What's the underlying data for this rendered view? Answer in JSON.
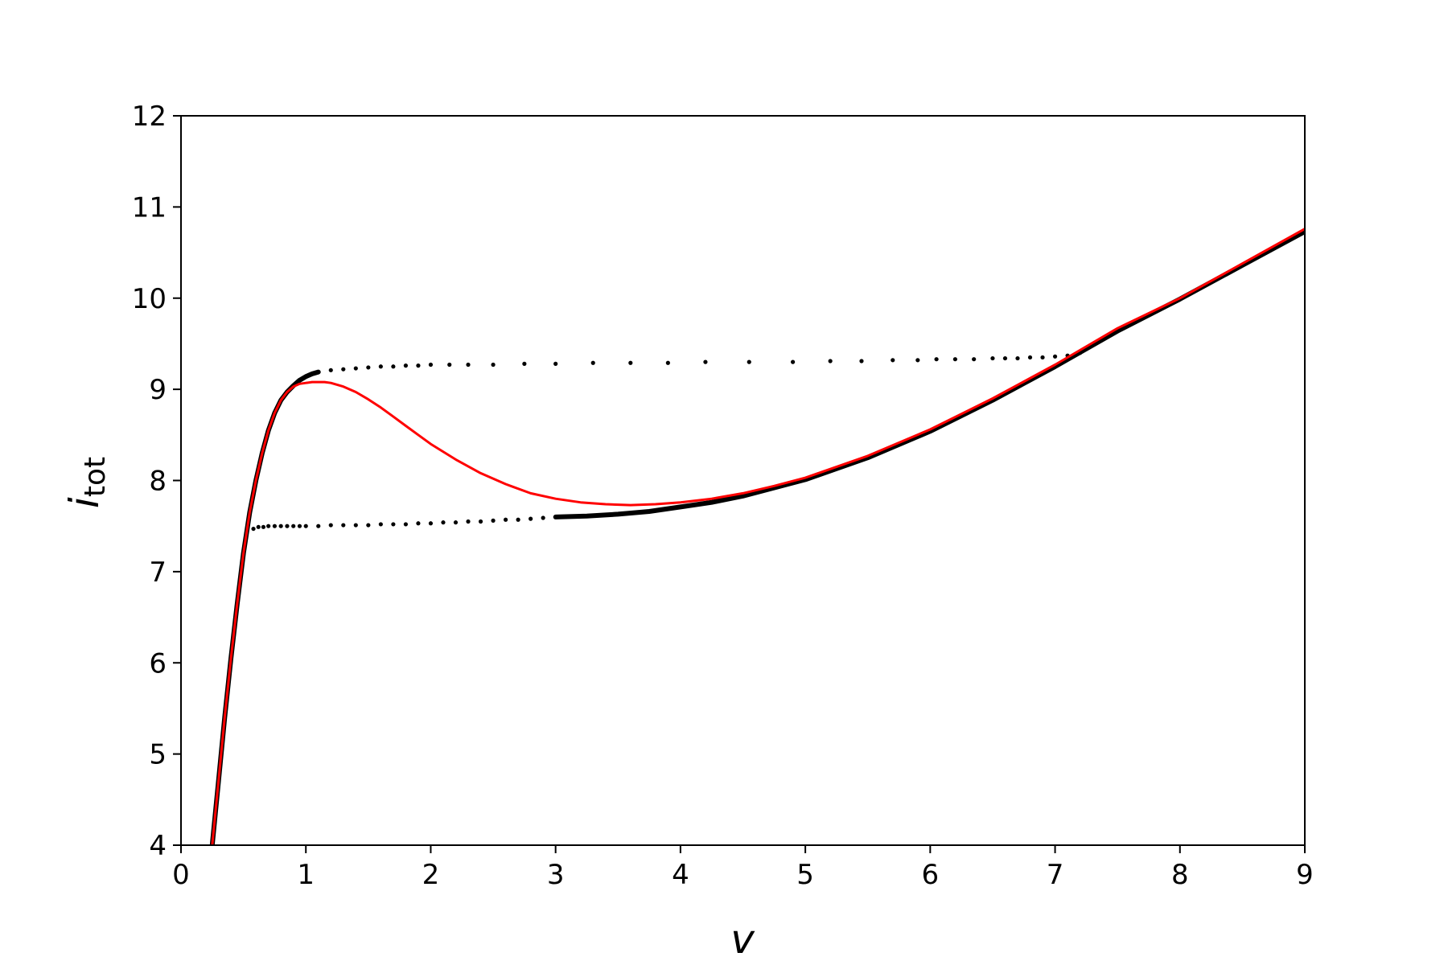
{
  "chart_data": {
    "type": "line",
    "xlabel": "v",
    "ylabel": {
      "main": "i",
      "subscript": "tot"
    },
    "xlim": [
      0,
      9
    ],
    "ylim": [
      4,
      12
    ],
    "xticks": [
      "0",
      "1",
      "2",
      "3",
      "4",
      "5",
      "6",
      "7",
      "8",
      "9"
    ],
    "yticks": [
      "4",
      "5",
      "6",
      "7",
      "8",
      "9",
      "10",
      "11",
      "12"
    ],
    "grid": false,
    "legend": "none",
    "colors": {
      "simulated": "#000000",
      "model": "#ff0000"
    },
    "series": [
      {
        "style": "solid-line",
        "color": "#ff0000",
        "x": [
          0.25,
          0.3,
          0.35,
          0.4,
          0.45,
          0.5,
          0.55,
          0.6,
          0.65,
          0.7,
          0.75,
          0.8,
          0.85,
          0.9,
          0.95,
          1.0,
          1.05,
          1.1,
          1.15,
          1.2,
          1.3,
          1.4,
          1.5,
          1.6,
          1.7,
          1.8,
          1.9,
          2.0,
          2.2,
          2.4,
          2.6,
          2.8,
          3.0,
          3.2,
          3.4,
          3.6,
          3.8,
          4.0,
          4.25,
          4.5,
          4.75,
          5.0,
          5.5,
          6.0,
          6.5,
          7.0,
          7.5,
          8.0,
          8.5,
          9.0
        ],
        "y": [
          4.0,
          4.7,
          5.4,
          6.05,
          6.65,
          7.2,
          7.65,
          8.0,
          8.3,
          8.55,
          8.74,
          8.88,
          8.97,
          9.03,
          9.06,
          9.07,
          9.08,
          9.08,
          9.08,
          9.07,
          9.03,
          8.97,
          8.89,
          8.8,
          8.7,
          8.6,
          8.5,
          8.4,
          8.23,
          8.08,
          7.96,
          7.86,
          7.8,
          7.76,
          7.74,
          7.73,
          7.74,
          7.76,
          7.8,
          7.86,
          7.94,
          8.03,
          8.27,
          8.56,
          8.9,
          9.27,
          9.67,
          10.0,
          10.38,
          10.76
        ]
      },
      {
        "style": "solid-line",
        "color": "#000000",
        "x": [
          0.25,
          0.3,
          0.35,
          0.4,
          0.45,
          0.5,
          0.55,
          0.6,
          0.65,
          0.7,
          0.75,
          0.8,
          0.85,
          0.9,
          0.95,
          1.0,
          1.05,
          1.1
        ],
        "y": [
          4.0,
          4.7,
          5.4,
          6.05,
          6.65,
          7.2,
          7.65,
          8.0,
          8.3,
          8.55,
          8.74,
          8.88,
          8.97,
          9.04,
          9.1,
          9.14,
          9.17,
          9.19
        ]
      },
      {
        "style": "solid-line",
        "color": "#000000",
        "x": [
          3.0,
          3.25,
          3.5,
          3.75,
          4.0,
          4.25,
          4.5,
          4.75,
          5.0,
          5.5,
          6.0,
          6.5,
          7.0,
          7.5,
          8.0,
          8.5,
          9.0
        ],
        "y": [
          7.6,
          7.61,
          7.63,
          7.66,
          7.71,
          7.76,
          7.83,
          7.92,
          8.01,
          8.25,
          8.54,
          8.88,
          9.25,
          9.64,
          9.99,
          10.36,
          10.73
        ]
      },
      {
        "style": "dotted",
        "color": "#000000",
        "x": [
          1.1,
          1.2,
          1.3,
          1.4,
          1.5,
          1.6,
          1.7,
          1.8,
          1.9,
          2.0,
          2.15,
          2.3,
          2.5,
          2.75,
          3.0,
          3.3,
          3.6,
          3.9,
          4.2,
          4.55,
          4.9,
          5.2,
          5.45,
          5.7,
          5.9,
          6.05,
          6.2,
          6.35,
          6.5,
          6.6,
          6.7,
          6.8,
          6.9,
          7.0,
          7.1,
          7.2
        ],
        "y": [
          9.19,
          9.21,
          9.22,
          9.23,
          9.24,
          9.25,
          9.25,
          9.26,
          9.26,
          9.27,
          9.27,
          9.27,
          9.27,
          9.28,
          9.28,
          9.29,
          9.29,
          9.29,
          9.3,
          9.3,
          9.3,
          9.31,
          9.31,
          9.32,
          9.32,
          9.33,
          9.33,
          9.33,
          9.34,
          9.34,
          9.34,
          9.35,
          9.35,
          9.36,
          9.37,
          9.4
        ]
      },
      {
        "style": "dotted",
        "color": "#000000",
        "x": [
          0.58,
          0.62,
          0.66,
          0.7,
          0.75,
          0.8,
          0.85,
          0.9,
          0.95,
          1.0,
          1.1,
          1.2,
          1.3,
          1.4,
          1.5,
          1.6,
          1.7,
          1.8,
          1.9,
          2.0,
          2.1,
          2.2,
          2.3,
          2.4,
          2.5,
          2.6,
          2.7,
          2.8,
          2.9,
          3.0
        ],
        "y": [
          7.47,
          7.49,
          7.49,
          7.5,
          7.5,
          7.5,
          7.5,
          7.5,
          7.5,
          7.5,
          7.5,
          7.51,
          7.51,
          7.51,
          7.51,
          7.52,
          7.52,
          7.52,
          7.53,
          7.53,
          7.54,
          7.54,
          7.55,
          7.55,
          7.56,
          7.57,
          7.57,
          7.58,
          7.59,
          7.6
        ]
      }
    ]
  }
}
